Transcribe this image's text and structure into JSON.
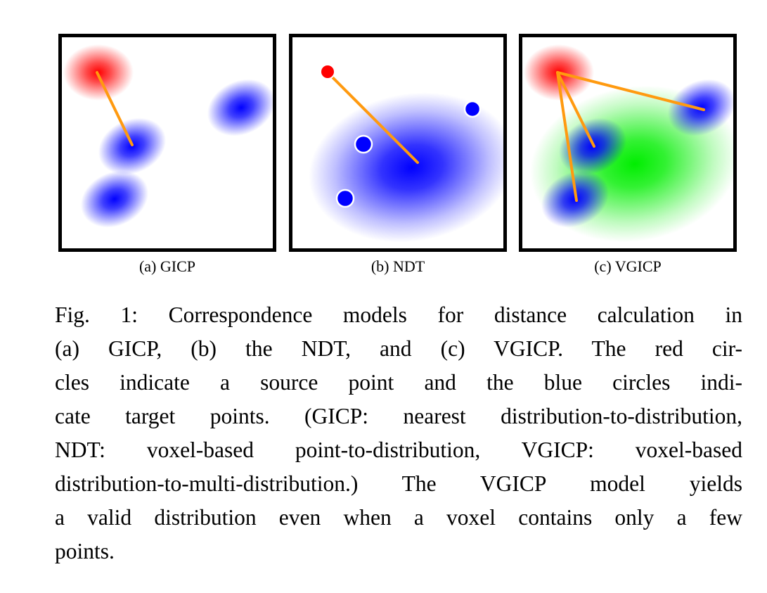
{
  "colors": {
    "source_red": "#ff0000",
    "target_blue": "#0000ff",
    "voxel_green": "#00ee00",
    "link_orange": "#ff9a10",
    "frame": "#000000"
  },
  "subfigures": [
    {
      "label": "(a) GICP"
    },
    {
      "label": "(b) NDT"
    },
    {
      "label": "(c) VGICP"
    }
  ],
  "caption": {
    "lines": [
      "Fig. 1: Correspondence models for distance calculation in",
      "(a) GICP, (b) the NDT, and (c) VGICP. The red cir-",
      "cles indicate a source point and the blue circles indi-",
      "cate target points. (GICP: nearest distribution-to-distribution,",
      "NDT: voxel-based point-to-distribution, VGICP: voxel-based",
      "distribution-to-multi-distribution.) The VGICP model yields",
      "a valid distribution even when a voxel contains only a few",
      "points."
    ]
  }
}
